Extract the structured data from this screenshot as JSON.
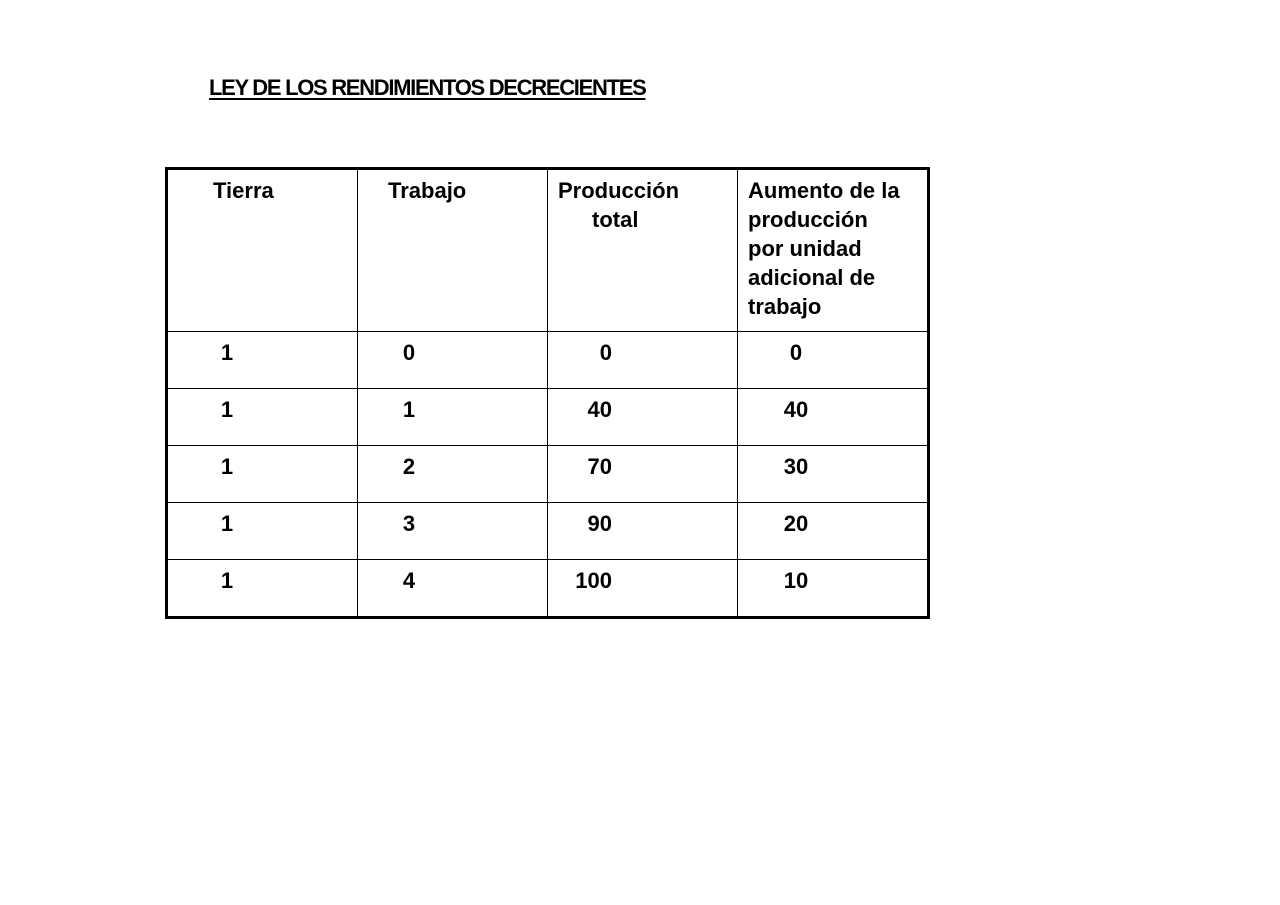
{
  "document": {
    "title": "LEY DE LOS RENDIMIENTOS DECRECIENTES"
  },
  "table": {
    "headers": {
      "tierra": "Tierra",
      "trabajo": "Trabajo",
      "produccion_line1": "Producción",
      "produccion_line2": "total",
      "aumento_line1": "Aumento de la",
      "aumento_line2": "producción",
      "aumento_line3": "por unidad",
      "aumento_line4": "adicional de",
      "aumento_line5": "trabajo"
    },
    "rows": [
      [
        "1",
        "0",
        "0",
        "0"
      ],
      [
        "1",
        "1",
        "40",
        "40"
      ],
      [
        "1",
        "2",
        "70",
        "30"
      ],
      [
        "1",
        "3",
        "90",
        "20"
      ],
      [
        "1",
        "4",
        "100",
        "10"
      ]
    ]
  }
}
